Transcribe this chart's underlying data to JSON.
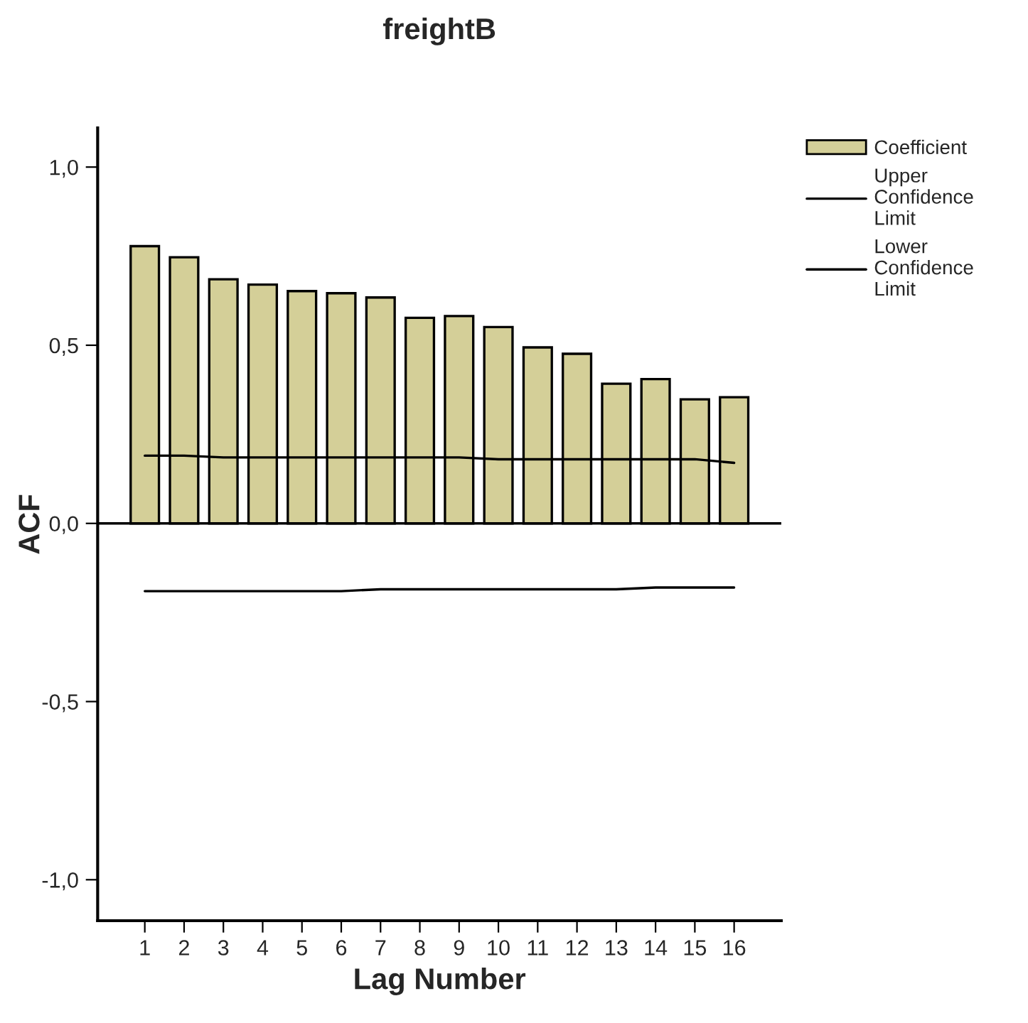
{
  "chart_data": {
    "type": "bar",
    "title": "freightB",
    "xlabel": "Lag Number",
    "ylabel": "ACF",
    "categories": [
      "1",
      "2",
      "3",
      "4",
      "5",
      "6",
      "7",
      "8",
      "9",
      "10",
      "11",
      "12",
      "13",
      "14",
      "15",
      "16"
    ],
    "series": [
      {
        "name": "Coefficient",
        "color": "#d4cf98",
        "values": [
          0.778,
          0.747,
          0.685,
          0.67,
          0.652,
          0.646,
          0.634,
          0.577,
          0.582,
          0.551,
          0.494,
          0.476,
          0.392,
          0.405,
          0.348,
          0.354
        ]
      },
      {
        "name": "Upper Confidence Limit",
        "type": "line",
        "color": "#000000",
        "values": [
          0.19,
          0.19,
          0.185,
          0.185,
          0.185,
          0.185,
          0.185,
          0.185,
          0.185,
          0.18,
          0.18,
          0.18,
          0.18,
          0.18,
          0.18,
          0.17
        ]
      },
      {
        "name": "Lower Confidence Limit",
        "type": "line",
        "color": "#000000",
        "values": [
          -0.19,
          -0.19,
          -0.19,
          -0.19,
          -0.19,
          -0.19,
          -0.185,
          -0.185,
          -0.185,
          -0.185,
          -0.185,
          -0.185,
          -0.185,
          -0.18,
          -0.18,
          -0.18
        ]
      }
    ],
    "ylim": [
      -1.115,
      1.11
    ],
    "yticks": [
      {
        "value": -1,
        "label": "-1,0"
      },
      {
        "value": -0.5,
        "label": "-0,5"
      },
      {
        "value": 0,
        "label": "0,0"
      },
      {
        "value": 0.5,
        "label": "0,5"
      },
      {
        "value": 1,
        "label": "1,0"
      }
    ],
    "ref_lines": [
      {
        "axis": "y",
        "value": 0,
        "color": "#000000"
      }
    ],
    "legend": "right",
    "grid": false
  }
}
